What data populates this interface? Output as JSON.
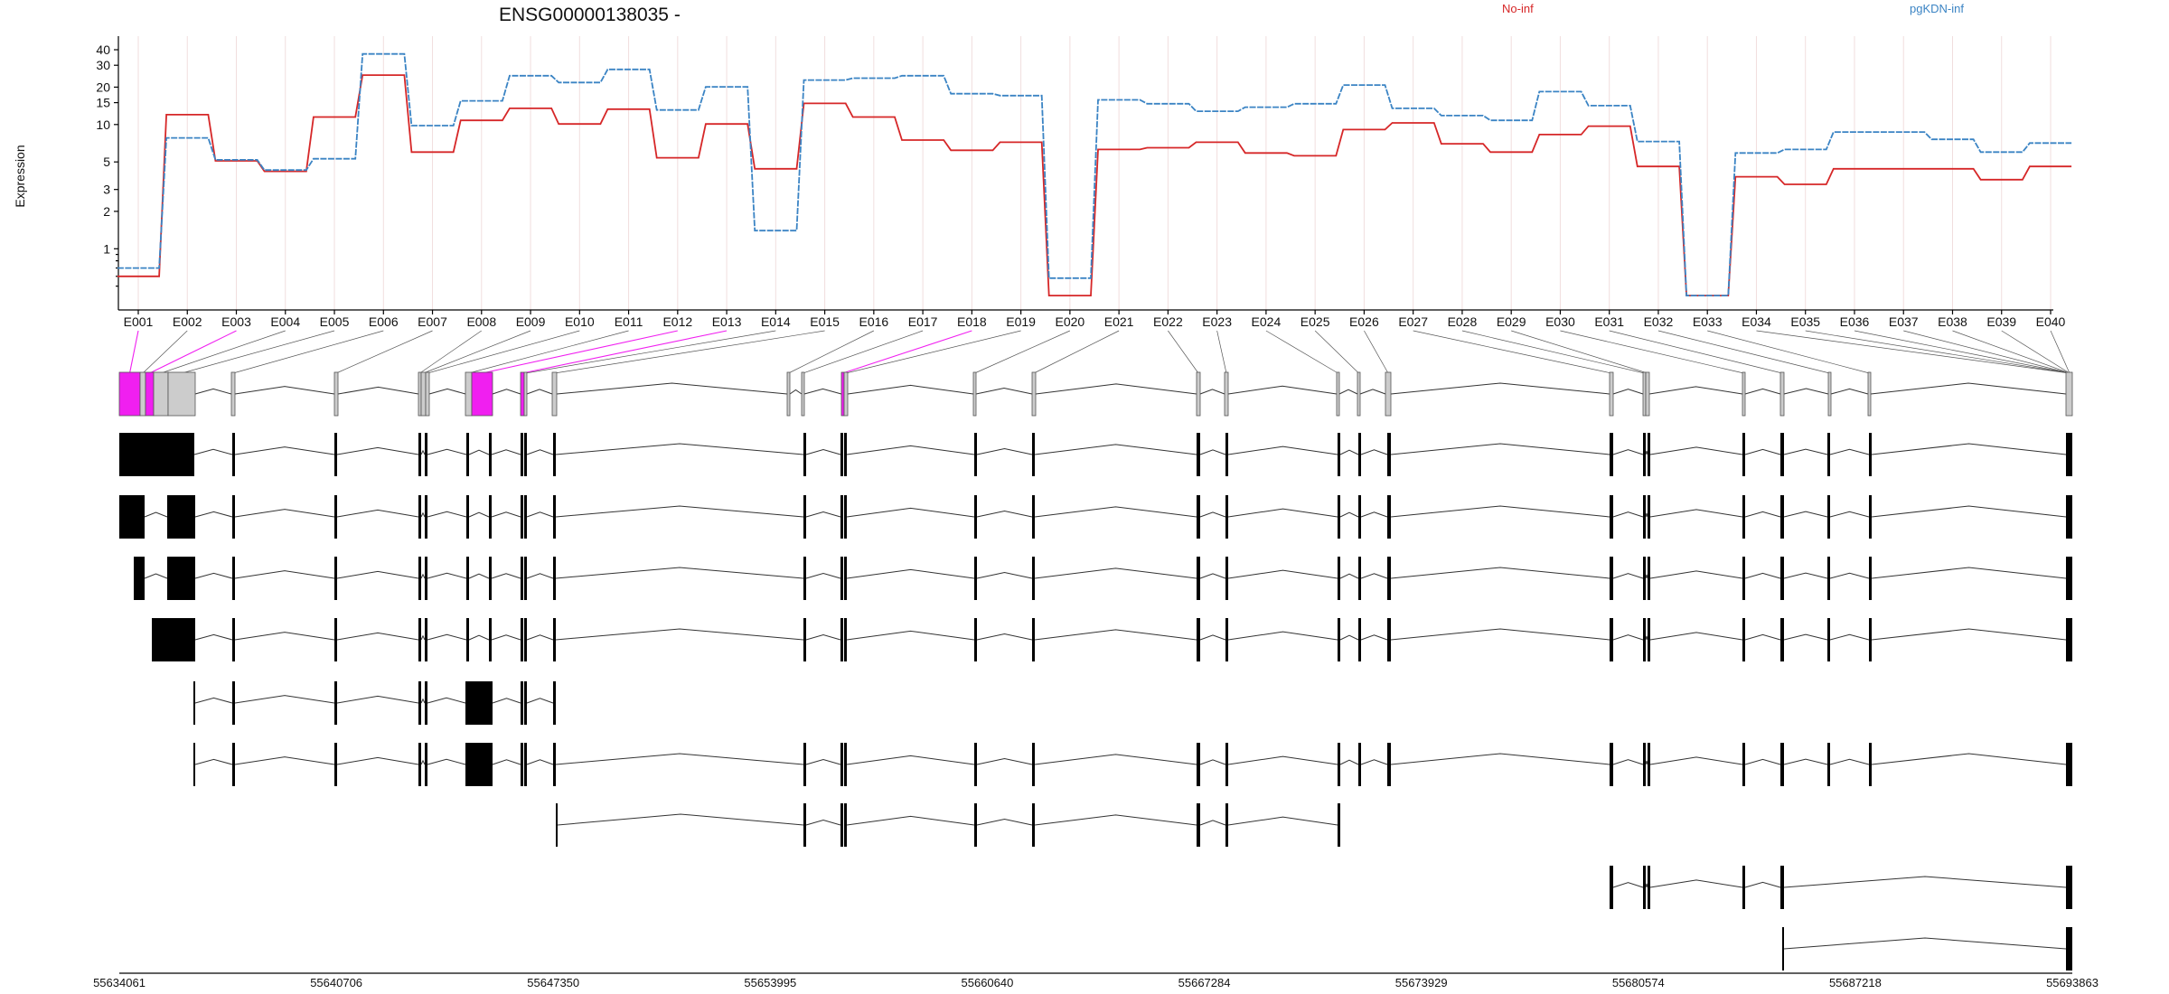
{
  "chart_data": {
    "type": "line",
    "title": "ENSG00000138035 -",
    "ylabel": "Expression",
    "y_scale": "log",
    "ylim": [
      0.4,
      45
    ],
    "y_ticks": [
      1,
      2,
      3,
      5,
      10,
      15,
      20,
      30,
      40
    ],
    "grid": "vertical",
    "legend_placement": "top",
    "categories": [
      "E001",
      "E002",
      "E003",
      "E004",
      "E005",
      "E006",
      "E007",
      "E008",
      "E009",
      "E010",
      "E011",
      "E012",
      "E013",
      "E014",
      "E015",
      "E016",
      "E017",
      "E018",
      "E019",
      "E020",
      "E021",
      "E022",
      "E023",
      "E024",
      "E025",
      "E026",
      "E027",
      "E028",
      "E029",
      "E030",
      "E031",
      "E032",
      "E033",
      "E034",
      "E035",
      "E036",
      "E037",
      "E038",
      "E039",
      "E040"
    ],
    "series": [
      {
        "name": "No-inf",
        "color": "#d62728",
        "values": [
          0.6,
          12,
          5.1,
          4.2,
          11.5,
          25,
          6,
          10.8,
          13.5,
          10.1,
          13.3,
          5.4,
          10.1,
          4.4,
          14.8,
          11.5,
          7.5,
          6.2,
          7.2,
          0.42,
          6.3,
          6.5,
          7.2,
          5.9,
          5.6,
          9.1,
          10.3,
          7,
          6,
          8.3,
          9.7,
          4.6,
          0.42,
          3.8,
          3.3,
          4.4,
          4.4,
          4.4,
          3.6,
          4.6
        ]
      },
      {
        "name": "pgKDN-inf",
        "color": "#3b84c4",
        "values": [
          0.7,
          7.8,
          5.2,
          4.3,
          5.3,
          37,
          9.8,
          15.5,
          24.7,
          21.8,
          27.8,
          13.1,
          20.1,
          1.4,
          22.8,
          23.6,
          24.7,
          17.7,
          17.1,
          0.58,
          15.8,
          14.7,
          12.8,
          13.8,
          14.7,
          20.8,
          13.5,
          11.8,
          10.8,
          18.4,
          14.2,
          7.3,
          0.42,
          5.9,
          6.3,
          8.7,
          8.7,
          7.6,
          6,
          7.1
        ]
      }
    ],
    "genomic_axis": {
      "tick_labels": [
        "55634061",
        "55640706",
        "55647350",
        "55653995",
        "55660640",
        "55667284",
        "55673929",
        "55680574",
        "55687218",
        "55693863"
      ]
    }
  },
  "colors": {
    "highlight": "#f01ff0",
    "exon_meta": "#cccccc",
    "exon": "#000000"
  }
}
